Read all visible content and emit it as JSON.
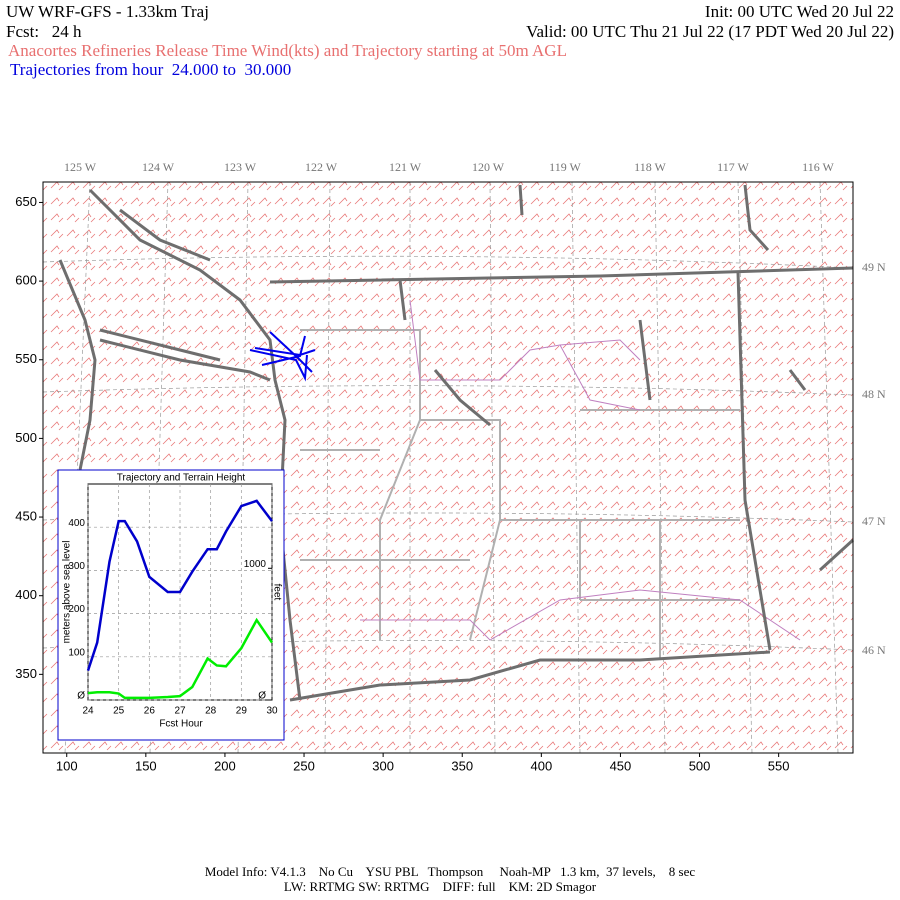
{
  "header": {
    "line1_left": "UW WRF-GFS - 1.33km Traj",
    "line1_right": "Init: 00 UTC Wed 20 Jul 22",
    "line2_left": "Fcst:   24 h",
    "line2_right": "Valid: 00 UTC Thu 21 Jul 22 (17 PDT Wed 20 Jul 22)",
    "line3": "Anacortes Refineries Release Time Wind(kts) and Trajectory starting at 50m AGL",
    "line4": "Trajectories from hour  24.000 to  30.000"
  },
  "map": {
    "xlim": [
      85,
      597
    ],
    "ylim": [
      300,
      663
    ],
    "xticks": [
      100,
      150,
      200,
      250,
      300,
      350,
      400,
      450,
      500,
      550
    ],
    "yticks": [
      350,
      400,
      450,
      500,
      550,
      600,
      650
    ],
    "longitude_labels": [
      "125 W",
      "124 W",
      "123 W",
      "122 W",
      "121 W",
      "120 W",
      "119 W",
      "118 W",
      "117 W",
      "116 W"
    ],
    "latitude_labels": [
      "49 N",
      "48 N",
      "47 N",
      "46 N"
    ]
  },
  "chart_data": {
    "type": "line",
    "title": "Trajectory and Terrain Height",
    "x_label": "Fcst Hour",
    "y_label": "meters above sea level",
    "y2_label": "feet",
    "x": [
      24,
      24.3,
      24.7,
      25,
      25.2,
      25.6,
      26,
      26.6,
      27,
      27.4,
      27.9,
      28.2,
      28.5,
      29,
      29.5,
      30
    ],
    "series": [
      {
        "color": "#0000cc",
        "values": [
          68,
          133,
          320,
          414,
          414,
          367,
          285,
          250,
          250,
          297,
          349,
          349,
          390,
          449,
          461,
          414
        ]
      },
      {
        "color": "#00ee00",
        "values": [
          16,
          18,
          18,
          15,
          5,
          5,
          5,
          7,
          9,
          30,
          96,
          80,
          78,
          120,
          185,
          133
        ]
      }
    ],
    "xlim": [
      24,
      30
    ],
    "ylim": [
      0,
      500
    ],
    "y2lim": [
      0,
      1640
    ],
    "xticks": [
      24,
      25,
      26,
      27,
      28,
      29,
      30
    ],
    "yticks": [
      {
        "value": 0,
        "label": "Ø"
      },
      100,
      200,
      300,
      400
    ],
    "y2ticks": [
      {
        "value": 0,
        "label": "Ø"
      },
      1000
    ],
    "grid": true
  },
  "footer": {
    "line1": "Model Info: V4.1.3    No Cu    YSU PBL   Thompson     Noah-MP   1.3 km,  37 levels,    8 sec",
    "line2": "LW: RRTMG SW: RRTMG    DIFF: full    KM: 2D Smagor"
  }
}
